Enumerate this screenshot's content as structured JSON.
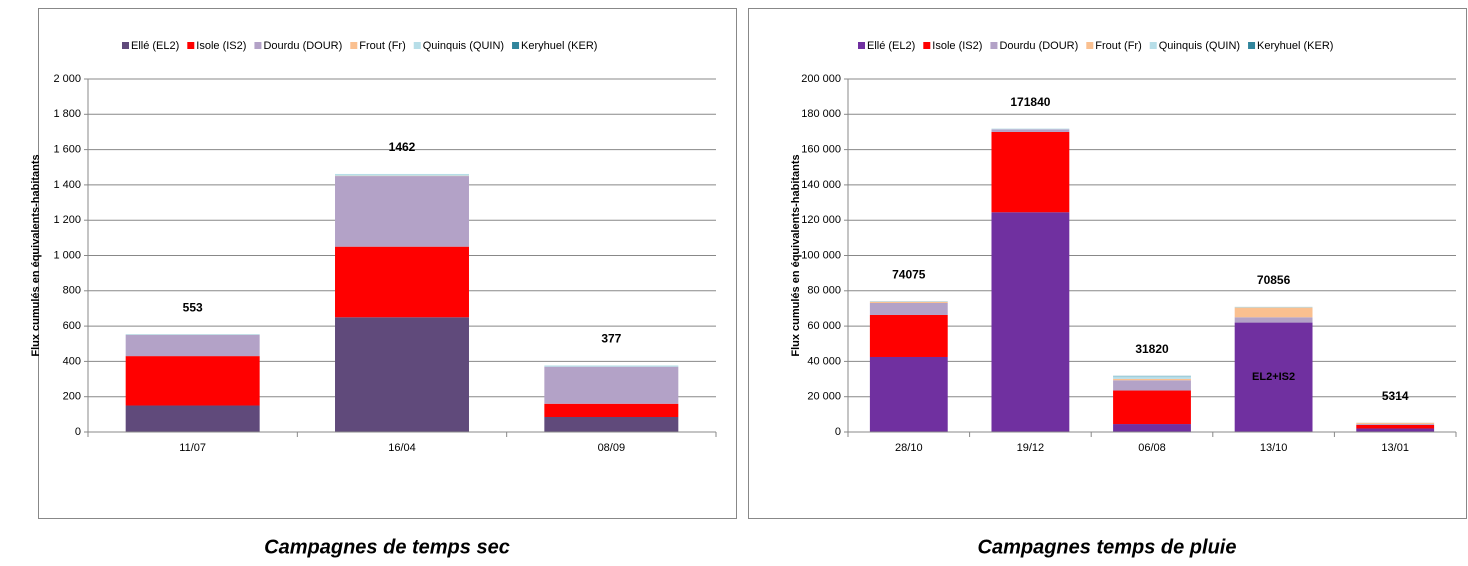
{
  "chart_data": [
    {
      "type": "stacked_bar",
      "caption": "Campagnes de temps sec",
      "ylabel": "Flux cumulés en équivalents-habitants",
      "categories": [
        "11/07",
        "16/04",
        "08/09"
      ],
      "series": [
        {
          "name": "Ellé (EL2)",
          "color": "#604a7b",
          "values": [
            150,
            650,
            85
          ]
        },
        {
          "name": "Isole (IS2)",
          "color": "#ff0000",
          "values": [
            280,
            400,
            75
          ]
        },
        {
          "name": "Dourdu (DOUR)",
          "color": "#b3a2c7",
          "values": [
            120,
            400,
            210
          ]
        },
        {
          "name": "Frout (Fr)",
          "color": "#fac090",
          "values": [
            0,
            2,
            0
          ]
        },
        {
          "name": "Quinquis (QUIN)",
          "color": "#b7dee8",
          "values": [
            2,
            10,
            7
          ]
        },
        {
          "name": "Keryhuel (KER)",
          "color": "#31859c",
          "values": [
            1,
            0,
            0
          ]
        }
      ],
      "totals": [
        553,
        1462,
        377
      ],
      "ylim": [
        0,
        2000
      ],
      "yticks": [
        0,
        200,
        400,
        600,
        800,
        {
          "value": 1000,
          "label": "1 000"
        },
        {
          "value": 1200,
          "label": "1 200"
        },
        {
          "value": 1400,
          "label": "1 400"
        },
        {
          "value": 1600,
          "label": "1 600"
        },
        {
          "value": 1800,
          "label": "1 800"
        },
        {
          "value": 2000,
          "label": "2 000"
        }
      ],
      "grid": true,
      "legend": "top"
    },
    {
      "type": "stacked_bar",
      "caption": "Campagnes temps de pluie",
      "ylabel": "Flux cumulés en équivalents-habitants",
      "categories": [
        "28/10",
        "19/12",
        "06/08",
        "13/10",
        "13/01"
      ],
      "series": [
        {
          "name": "Ellé (EL2)",
          "color": "#7030a0",
          "values": [
            42500,
            124500,
            4500,
            62000,
            2000
          ]
        },
        {
          "name": "Isole (IS2)",
          "color": "#ff0000",
          "values": [
            23800,
            45500,
            19000,
            0,
            2000
          ]
        },
        {
          "name": "Dourdu (DOUR)",
          "color": "#b3a2c7",
          "values": [
            6800,
            1500,
            5800,
            3000,
            500
          ]
        },
        {
          "name": "Frout (Fr)",
          "color": "#fac090",
          "values": [
            700,
            0,
            800,
            5500,
            700
          ]
        },
        {
          "name": "Quinquis (QUIN)",
          "color": "#b7dee8",
          "values": [
            200,
            300,
            1500,
            300,
            100
          ]
        },
        {
          "name": "Keryhuel (KER)",
          "color": "#31859c",
          "values": [
            75,
            40,
            220,
            56,
            14
          ]
        }
      ],
      "totals": [
        74075,
        171840,
        31820,
        70856,
        5314
      ],
      "annotation": "EL2+IS2",
      "ylim": [
        0,
        200000
      ],
      "yticks": [
        0,
        {
          "value": 20000,
          "label": "20 000"
        },
        {
          "value": 40000,
          "label": "40 000"
        },
        {
          "value": 60000,
          "label": "60 000"
        },
        {
          "value": 80000,
          "label": "80 000"
        },
        {
          "value": 100000,
          "label": "100 000"
        },
        {
          "value": 120000,
          "label": "120 000"
        },
        {
          "value": 140000,
          "label": "140 000"
        },
        {
          "value": 160000,
          "label": "160 000"
        },
        {
          "value": 180000,
          "label": "180 000"
        },
        {
          "value": 200000,
          "label": "200 000"
        }
      ],
      "grid": true,
      "legend": "top"
    }
  ]
}
